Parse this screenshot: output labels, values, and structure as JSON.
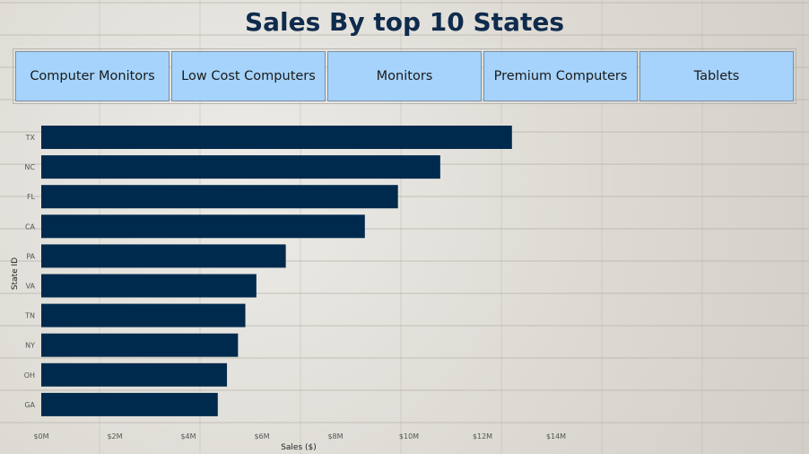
{
  "header": {
    "title": "Sales By top 10 States"
  },
  "slicer": {
    "items": [
      "Computer Monitors",
      "Low Cost Computers",
      "Monitors",
      "Premium Computers",
      "Tablets"
    ]
  },
  "colors": {
    "bar": "#002a4d",
    "slicer_bg": "#a5d3fb",
    "title": "#0f2b4d"
  },
  "chart_data": {
    "type": "bar",
    "orientation": "horizontal",
    "categories": [
      "TX",
      "NC",
      "FL",
      "CA",
      "PA",
      "VA",
      "TN",
      "NY",
      "OH",
      "GA"
    ],
    "values": [
      12.8,
      10.85,
      9.7,
      8.8,
      6.65,
      5.85,
      5.55,
      5.35,
      5.05,
      4.8
    ],
    "value_unit": "M",
    "xlabel": "Sales ($)",
    "ylabel": "State ID",
    "xlim": [
      0,
      14
    ],
    "x_ticks": [
      "$0M",
      "$2M",
      "$4M",
      "$6M",
      "$8M",
      "$10M",
      "$12M",
      "$14M"
    ],
    "grid": false
  }
}
